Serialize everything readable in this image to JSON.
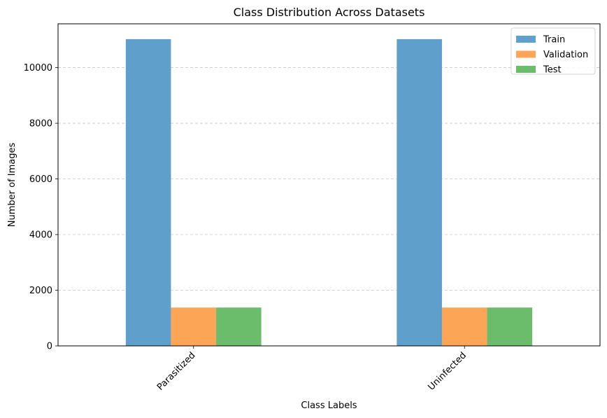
{
  "chart_data": {
    "type": "bar",
    "title": "Class Distribution Across Datasets",
    "xlabel": "Class Labels",
    "ylabel": "Number of Images",
    "categories": [
      "Parasitized",
      "Uninfected"
    ],
    "series": [
      {
        "name": "Train",
        "values": [
          11023,
          11023
        ],
        "color": "#5f9fcb"
      },
      {
        "name": "Validation",
        "values": [
          1378,
          1378
        ],
        "color": "#fda556"
      },
      {
        "name": "Test",
        "values": [
          1378,
          1378
        ],
        "color": "#6bbd6b"
      }
    ],
    "ylim": [
      0,
      11574
    ],
    "yticks": [
      0,
      2000,
      4000,
      6000,
      8000,
      10000
    ],
    "grid": "y-dashed",
    "legend": "top-right",
    "xtick_rotation": 45
  }
}
